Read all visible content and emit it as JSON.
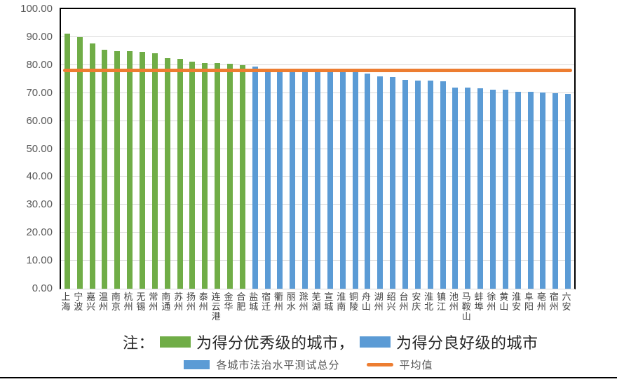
{
  "chart_data": {
    "type": "bar",
    "title": "",
    "xlabel": "",
    "ylabel": "",
    "categories": [
      "上海",
      "宁波",
      "嘉兴",
      "温州",
      "南京",
      "杭州",
      "无锡",
      "常州",
      "南通",
      "苏州",
      "扬州",
      "泰州",
      "连云港",
      "金华",
      "合肥",
      "盐城",
      "宿迁",
      "衢州",
      "丽水",
      "滁州",
      "芜湖",
      "宣城",
      "淮南",
      "铜陵",
      "舟山",
      "湖州",
      "绍兴",
      "台州",
      "安庆",
      "淮北",
      "镇江",
      "池州",
      "马鞍山",
      "蚌埠",
      "徐州",
      "黄山",
      "淮安",
      "阜阳",
      "亳州",
      "宿州",
      "六安"
    ],
    "values": [
      91.2,
      89.9,
      87.8,
      85.5,
      85.0,
      84.9,
      84.8,
      84.1,
      82.4,
      82.3,
      81.2,
      80.8,
      80.7,
      80.5,
      79.9,
      79.5,
      78.8,
      78.6,
      78.5,
      78.4,
      78.4,
      78.3,
      78.3,
      78.2,
      76.9,
      76.0,
      75.7,
      74.6,
      74.5,
      74.4,
      74.2,
      72.0,
      71.9,
      71.8,
      71.3,
      71.2,
      70.5,
      70.4,
      70.3,
      69.9,
      69.8
    ],
    "grades": [
      "excellent",
      "excellent",
      "excellent",
      "excellent",
      "excellent",
      "excellent",
      "excellent",
      "excellent",
      "excellent",
      "excellent",
      "excellent",
      "excellent",
      "excellent",
      "excellent",
      "excellent",
      "good",
      "good",
      "good",
      "good",
      "good",
      "good",
      "good",
      "good",
      "good",
      "good",
      "good",
      "good",
      "good",
      "good",
      "good",
      "good",
      "good",
      "good",
      "good",
      "good",
      "good",
      "good",
      "good",
      "good",
      "good",
      "good"
    ],
    "average_value": 78.2,
    "y_axis": {
      "min": 0,
      "max": 100,
      "tick_step": 10,
      "tick_labels": [
        "100.00",
        "90.00",
        "80.00",
        "70.00",
        "60.00",
        "50.00",
        "40.00",
        "30.00",
        "20.00",
        "10.00",
        "0.00"
      ]
    },
    "legend_entries": [
      "各城市法治水平测试总分",
      "平均值"
    ],
    "legend_position": "bottom",
    "grid": true
  },
  "note": {
    "prefix": "注：",
    "excellent_text": "为得分优秀级的城市，",
    "good_text": "为得分良好级的城市"
  },
  "colors": {
    "excellent": "#70AD47",
    "good": "#5B9BD5",
    "average_line": "#ED7D31",
    "gridline": "#D9D9D9",
    "axis_label": "#595959",
    "plot_border": "#000000"
  }
}
